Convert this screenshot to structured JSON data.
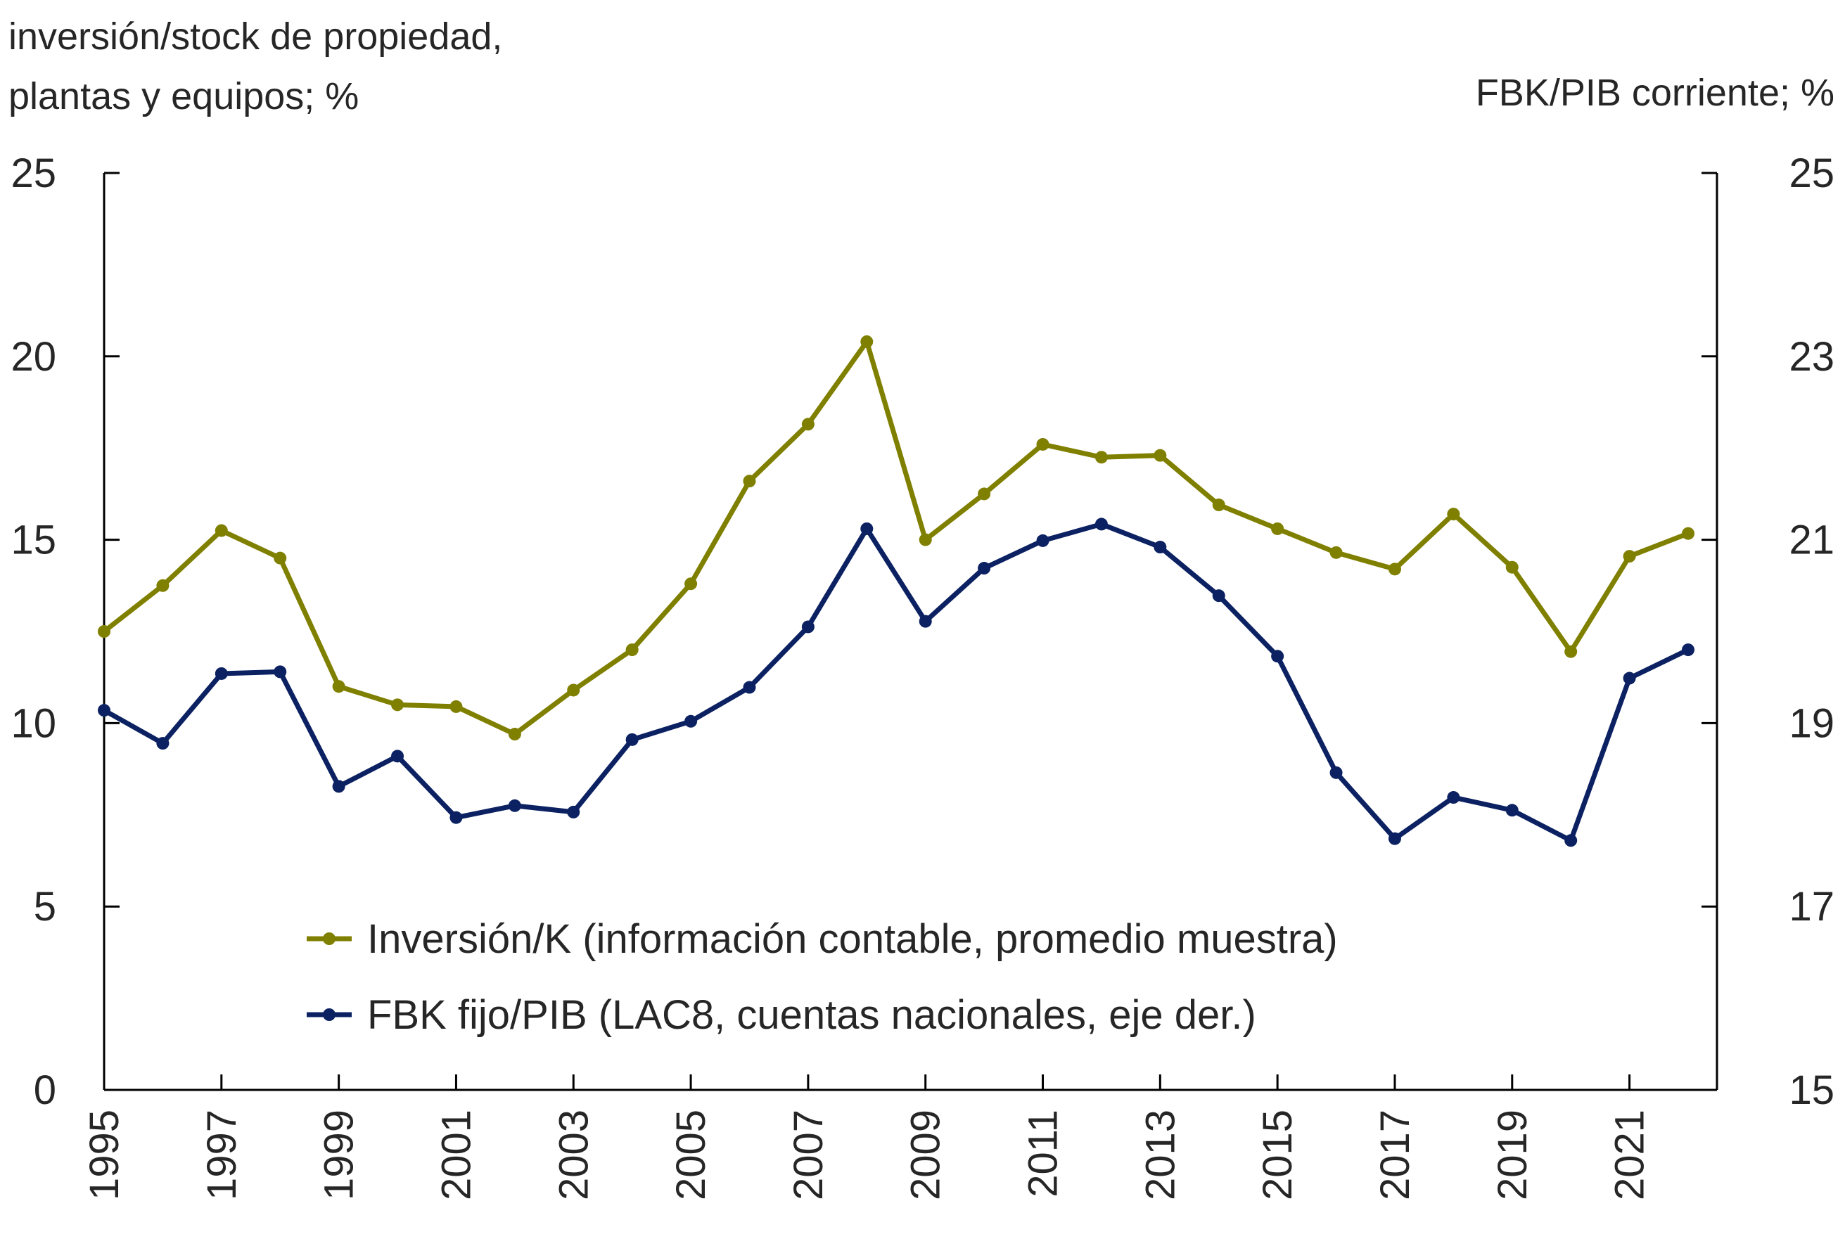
{
  "chart_data": {
    "type": "line",
    "title": "",
    "left_axis_title": [
      "inversión/stock de propiedad,",
      "plantas y equipos; %"
    ],
    "right_axis_title": "FBK/PIB corriente; %",
    "x": [
      1995,
      1996,
      1997,
      1998,
      1999,
      2000,
      2001,
      2002,
      2003,
      2004,
      2005,
      2006,
      2007,
      2008,
      2009,
      2010,
      2011,
      2012,
      2013,
      2014,
      2015,
      2016,
      2017,
      2018,
      2019,
      2020,
      2021,
      2022
    ],
    "x_tick_labels": [
      "1995",
      "1997",
      "1999",
      "2001",
      "2003",
      "2005",
      "2007",
      "2009",
      "2011",
      "2013",
      "2015",
      "2017",
      "2019",
      "2021"
    ],
    "left_ylim": [
      0,
      25
    ],
    "left_ticks": [
      "0",
      "5",
      "10",
      "15",
      "20",
      "25"
    ],
    "right_ylim": [
      15,
      25
    ],
    "right_ticks": [
      "15",
      "17",
      "19",
      "21",
      "23",
      "25"
    ],
    "grid": false,
    "legend_position": "bottom-center",
    "series": [
      {
        "name": "Inversión/K (información contable, promedio muestra)",
        "axis": "left",
        "color": "#7f7f00",
        "values": [
          12.5,
          13.75,
          15.25,
          14.5,
          11.0,
          10.5,
          10.45,
          9.7,
          10.9,
          12.0,
          13.8,
          16.6,
          18.15,
          20.4,
          15.0,
          16.25,
          17.6,
          17.25,
          17.3,
          15.95,
          15.3,
          14.65,
          14.2,
          15.7,
          14.25,
          11.95,
          14.55,
          15.17
        ]
      },
      {
        "name": "FBK fijo/PIB (LAC8, cuentas nacionales, eje der.)",
        "axis": "right",
        "color": "#0b2162",
        "values": [
          19.14,
          18.78,
          19.54,
          19.56,
          18.31,
          18.64,
          17.97,
          18.1,
          18.03,
          18.82,
          19.02,
          19.39,
          20.05,
          21.12,
          20.11,
          20.69,
          20.99,
          21.17,
          20.92,
          20.39,
          19.73,
          18.46,
          17.74,
          18.19,
          18.05,
          17.72,
          19.49,
          19.8
        ]
      }
    ]
  }
}
